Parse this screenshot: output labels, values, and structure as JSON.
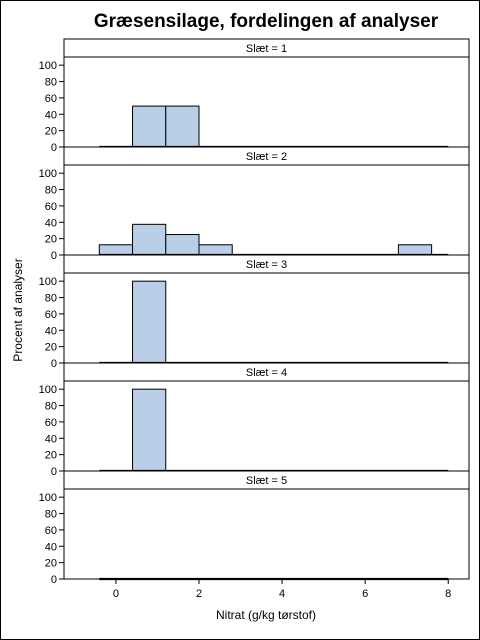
{
  "chart_data": {
    "type": "bar",
    "title": "Græsensilage, fordelingen af analyser",
    "xlabel": "Nitrat (g/kg tørstof)",
    "ylabel": "Procent af analyser",
    "xlim": [
      -1.25,
      8.5
    ],
    "ylim": [
      0,
      110
    ],
    "x_ticks": [
      0,
      2,
      4,
      6,
      8
    ],
    "y_ticks": [
      0,
      20,
      40,
      60,
      80,
      100
    ],
    "bin_width": 0.8,
    "baseline_range": [
      -0.4,
      8.0
    ],
    "panels": [
      {
        "label": "Slæt = 1",
        "bins": [
          {
            "x0": 0.4,
            "value": 50
          },
          {
            "x0": 1.2,
            "value": 50
          }
        ]
      },
      {
        "label": "Slæt = 2",
        "bins": [
          {
            "x0": -0.4,
            "value": 12.5
          },
          {
            "x0": 0.4,
            "value": 37.5
          },
          {
            "x0": 1.2,
            "value": 25
          },
          {
            "x0": 2.0,
            "value": 12.5
          },
          {
            "x0": 6.8,
            "value": 12.5
          }
        ]
      },
      {
        "label": "Slæt = 3",
        "bins": [
          {
            "x0": 0.4,
            "value": 100
          }
        ]
      },
      {
        "label": "Slæt = 4",
        "bins": [
          {
            "x0": 0.4,
            "value": 100
          }
        ]
      },
      {
        "label": "Slæt = 5",
        "bins": []
      }
    ]
  }
}
